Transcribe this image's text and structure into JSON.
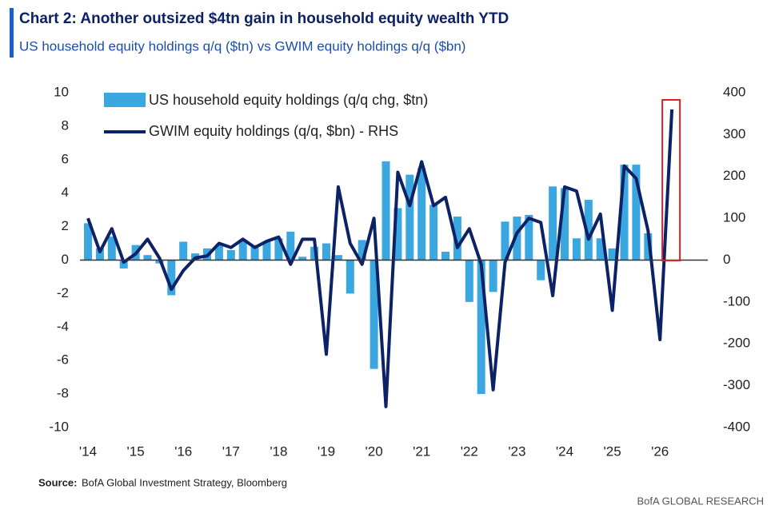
{
  "chart_data": {
    "type": "bar_line",
    "title": "Chart 2: Another outsized $4tn gain in household equity wealth YTD",
    "subtitle": "US household equity holdings q/q ($tn) vs GWIM equity holdings q/q ($bn)",
    "source_label": "Source:",
    "source": "BofA Global Investment Strategy, Bloomberg",
    "brand": "BofA GLOBAL RESEARCH",
    "categories": [
      "'14",
      null,
      null,
      null,
      "'15",
      null,
      null,
      null,
      "'16",
      null,
      null,
      null,
      "'17",
      null,
      null,
      null,
      "'18",
      null,
      null,
      null,
      "'19",
      null,
      null,
      null,
      "'20",
      null,
      null,
      null,
      "'21",
      null,
      null,
      null,
      "'22",
      null,
      null,
      null,
      "'23",
      null,
      null,
      null,
      "'24",
      null,
      null,
      null,
      "'25",
      null,
      null,
      null,
      "'26",
      null
    ],
    "series": [
      {
        "name": "US household equity holdings (q/q chg, $tn)",
        "color": "#3aa7e0",
        "type": "bar",
        "values": [
          2.2,
          0.7,
          1.4,
          -0.5,
          0.9,
          0.3,
          -0.2,
          -2.1,
          1.1,
          0.4,
          0.7,
          0.9,
          0.6,
          1.2,
          0.9,
          1.1,
          1.3,
          1.7,
          0.2,
          0.8,
          1.0,
          0.3,
          -2.0,
          1.2,
          -6.5,
          5.9,
          3.1,
          5.1,
          5.5,
          3.3,
          0.5,
          2.6,
          -2.5,
          -8.0,
          -1.9,
          2.3,
          2.6,
          2.7,
          -1.2,
          4.4,
          4.3,
          1.3,
          3.6,
          1.3,
          0.7,
          5.7,
          5.7,
          1.6,
          null,
          null
        ]
      },
      {
        "name": "GWIM equity holdings (q/q, $bn) - RHS",
        "color": "#0d2266",
        "type": "line",
        "axis": "y2",
        "values": [
          100,
          20,
          75,
          -5,
          15,
          50,
          5,
          -70,
          -25,
          5,
          10,
          40,
          30,
          50,
          30,
          45,
          55,
          -10,
          50,
          50,
          -225,
          175,
          40,
          -10,
          100,
          -350,
          210,
          130,
          235,
          130,
          150,
          30,
          75,
          -10,
          -310,
          -5,
          65,
          100,
          90,
          -85,
          175,
          165,
          50,
          110,
          -120,
          225,
          195,
          70,
          -190,
          360
        ]
      }
    ],
    "ylim": [
      -10,
      10
    ],
    "yticks": [
      -10,
      -8,
      -6,
      -4,
      -2,
      0,
      2,
      4,
      6,
      8,
      10
    ],
    "y2lim": [
      -400,
      400
    ],
    "y2ticks": [
      -400,
      -300,
      -200,
      -100,
      0,
      100,
      200,
      300,
      400
    ],
    "highlight_color": "#e02020"
  }
}
